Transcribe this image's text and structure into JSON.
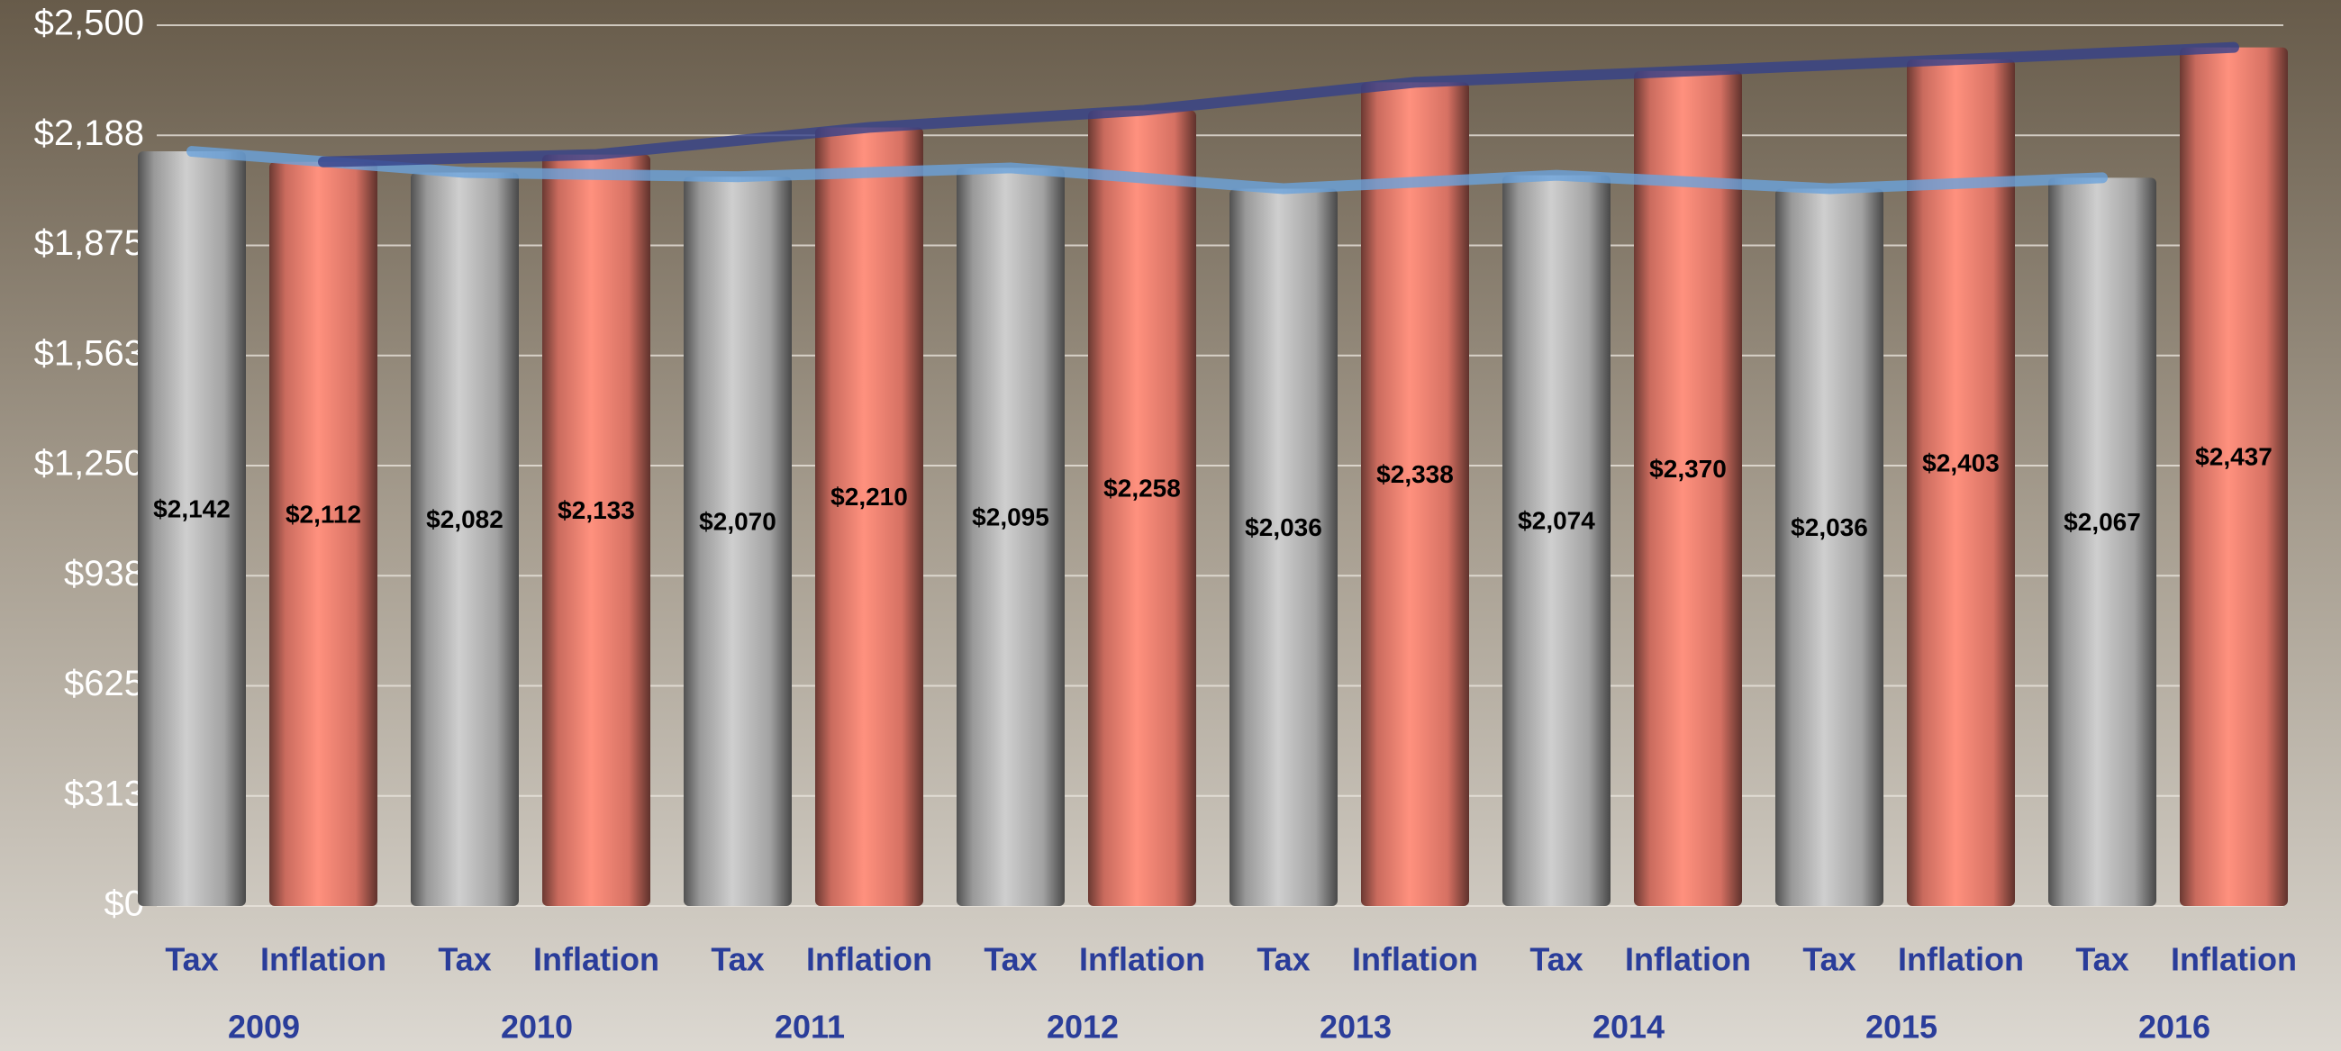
{
  "chart_data": {
    "type": "bar",
    "categories": [
      "2009",
      "2010",
      "2011",
      "2012",
      "2013",
      "2014",
      "2015",
      "2016"
    ],
    "series": [
      {
        "name": "Tax",
        "color": "#b4b4b4",
        "line_color": "#6aa2dc",
        "values": [
          2142,
          2082,
          2070,
          2095,
          2036,
          2074,
          2036,
          2067
        ],
        "value_labels": [
          "$2,142",
          "$2,082",
          "$2,070",
          "$2,095",
          "$2,036",
          "$2,074",
          "$2,036",
          "$2,067"
        ]
      },
      {
        "name": "Inflation",
        "color": "#ee7e6e",
        "line_color": "#34418a",
        "values": [
          2112,
          2133,
          2210,
          2258,
          2338,
          2370,
          2403,
          2437
        ],
        "value_labels": [
          "$2,112",
          "$2,133",
          "$2,210",
          "$2,258",
          "$2,338",
          "$2,370",
          "$2,403",
          "$2,437"
        ]
      }
    ],
    "ylim": [
      0,
      2500
    ],
    "yticks": [
      {
        "value": 0,
        "label": "$0"
      },
      {
        "value": 312.5,
        "label": "$313"
      },
      {
        "value": 625,
        "label": "$625"
      },
      {
        "value": 937.5,
        "label": "$938"
      },
      {
        "value": 1250,
        "label": "$1,250"
      },
      {
        "value": 1562.5,
        "label": "$1,563"
      },
      {
        "value": 1875,
        "label": "$1,875"
      },
      {
        "value": 2187.5,
        "label": "$2,188"
      },
      {
        "value": 2500,
        "label": "$2,500"
      }
    ],
    "grid": true
  }
}
